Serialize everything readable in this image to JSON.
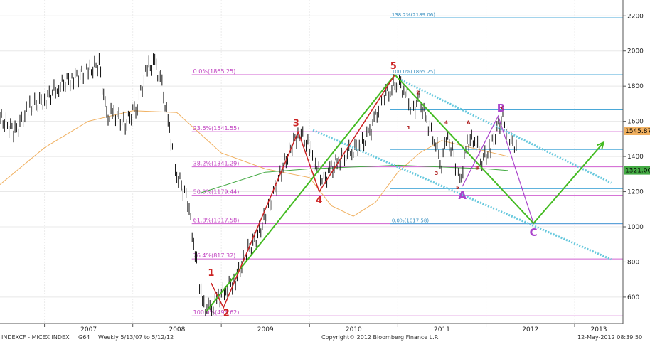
{
  "chart_data": {
    "type": "line",
    "x_range": [
      "2006-07-01",
      "2013-07-20"
    ],
    "ylim": [
      450,
      2290
    ],
    "y_ticks": [
      600,
      800,
      1000,
      1200,
      1400,
      1600,
      1800,
      2000,
      2200
    ],
    "year_labels": [
      {
        "label": "2007",
        "date": "2007-01-01"
      },
      {
        "label": "2008",
        "date": "2008-01-01"
      },
      {
        "label": "2009",
        "date": "2009-01-01"
      },
      {
        "label": "2010",
        "date": "2010-01-01"
      },
      {
        "label": "2011",
        "date": "2011-01-01"
      },
      {
        "label": "2012",
        "date": "2012-01-01"
      },
      {
        "label": "2013",
        "date": "2013-01-01"
      }
    ],
    "price_series": {
      "points": [
        [
          "2006-07-01",
          1620
        ],
        [
          "2006-09-01",
          1540
        ],
        [
          "2006-11-01",
          1680
        ],
        [
          "2007-01-01",
          1720
        ],
        [
          "2007-03-01",
          1800
        ],
        [
          "2007-05-01",
          1850
        ],
        [
          "2007-07-01",
          1880
        ],
        [
          "2007-08-15",
          1930
        ],
        [
          "2007-09-15",
          1620
        ],
        [
          "2007-10-15",
          1650
        ],
        [
          "2007-12-01",
          1580
        ],
        [
          "2008-01-20",
          1700
        ],
        [
          "2008-03-01",
          1900
        ],
        [
          "2008-04-01",
          1930
        ],
        [
          "2008-05-01",
          1800
        ],
        [
          "2008-06-01",
          1550
        ],
        [
          "2008-07-01",
          1300
        ],
        [
          "2008-08-15",
          1150
        ],
        [
          "2008-09-15",
          850
        ],
        [
          "2008-10-15",
          560
        ],
        [
          "2008-11-15",
          520
        ],
        [
          "2008-12-20",
          600
        ],
        [
          "2009-01-20",
          650
        ],
        [
          "2009-03-01",
          700
        ],
        [
          "2009-04-15",
          850
        ],
        [
          "2009-06-01",
          950
        ],
        [
          "2009-07-15",
          1100
        ],
        [
          "2009-09-01",
          1300
        ],
        [
          "2009-10-15",
          1450
        ],
        [
          "2009-11-20",
          1540
        ],
        [
          "2010-01-01",
          1450
        ],
        [
          "2010-02-01",
          1320
        ],
        [
          "2010-03-01",
          1260
        ],
        [
          "2010-04-01",
          1330
        ],
        [
          "2010-05-01",
          1380
        ],
        [
          "2010-06-01",
          1420
        ],
        [
          "2010-07-01",
          1440
        ],
        [
          "2010-08-01",
          1460
        ],
        [
          "2010-09-01",
          1520
        ],
        [
          "2010-10-01",
          1620
        ],
        [
          "2010-11-01",
          1750
        ],
        [
          "2010-12-01",
          1780
        ],
        [
          "2011-01-01",
          1830
        ],
        [
          "2011-02-01",
          1760
        ],
        [
          "2011-03-01",
          1660
        ],
        [
          "2011-04-01",
          1720
        ],
        [
          "2011-05-01",
          1600
        ],
        [
          "2011-06-01",
          1500
        ],
        [
          "2011-07-01",
          1360
        ],
        [
          "2011-07-20",
          1500
        ],
        [
          "2011-08-15",
          1440
        ],
        [
          "2011-09-15",
          1240
        ],
        [
          "2011-10-15",
          1480
        ],
        [
          "2011-11-15",
          1500
        ],
        [
          "2011-12-15",
          1380
        ],
        [
          "2012-01-20",
          1440
        ],
        [
          "2012-02-15",
          1560
        ],
        [
          "2012-03-10",
          1620
        ],
        [
          "2012-04-01",
          1520
        ],
        [
          "2012-04-20",
          1500
        ],
        [
          "2012-05-12",
          1400
        ]
      ],
      "color": "#111111"
    },
    "moving_average_orange": {
      "points": [
        [
          "2006-07-01",
          1240
        ],
        [
          "2007-01-01",
          1450
        ],
        [
          "2007-07-01",
          1600
        ],
        [
          "2008-01-01",
          1660
        ],
        [
          "2008-07-01",
          1650
        ],
        [
          "2009-01-01",
          1420
        ],
        [
          "2009-07-01",
          1330
        ],
        [
          "2010-01-01",
          1280
        ],
        [
          "2010-04-01",
          1120
        ],
        [
          "2010-07-01",
          1060
        ],
        [
          "2010-10-01",
          1140
        ],
        [
          "2011-01-01",
          1310
        ],
        [
          "2011-04-01",
          1420
        ],
        [
          "2011-07-01",
          1490
        ],
        [
          "2011-10-01",
          1460
        ],
        [
          "2012-01-01",
          1430
        ],
        [
          "2012-04-01",
          1400
        ]
      ],
      "color": "#f0b060"
    },
    "moving_average_green": {
      "points": [
        [
          "2008-10-01",
          1190
        ],
        [
          "2009-01-01",
          1230
        ],
        [
          "2009-07-01",
          1310
        ],
        [
          "2010-01-01",
          1330
        ],
        [
          "2010-07-01",
          1340
        ],
        [
          "2011-01-01",
          1350
        ],
        [
          "2011-07-01",
          1340
        ],
        [
          "2012-01-01",
          1330
        ],
        [
          "2012-04-01",
          1320
        ]
      ],
      "color": "#44aa44"
    },
    "fib_levels_magenta": [
      {
        "label": "0.0%(1865.25)",
        "value": 1865.25
      },
      {
        "label": "23.6%(1541.55)",
        "value": 1541.55
      },
      {
        "label": "38.2%(1341.29)",
        "value": 1341.29
      },
      {
        "label": "50.0%(1179.44)",
        "value": 1179.44
      },
      {
        "label": "61.8%(1017.58)",
        "value": 1017.58
      },
      {
        "label": "76.4%(817.32)",
        "value": 817.32
      },
      {
        "label": "100.0%(493.62)",
        "value": 493.62
      }
    ],
    "fib_levels_blue": [
      {
        "label": "138.2%(2189.06)",
        "value": 2189.06
      },
      {
        "label": "100.0%(1865.25)",
        "value": 1865.25
      },
      {
        "label": "",
        "value": 1665
      },
      {
        "label": "",
        "value": 1440
      },
      {
        "label": "",
        "value": 1217
      },
      {
        "label": "0.0%(1017.58)",
        "value": 1017.58
      }
    ],
    "elliott_wave_red": {
      "points": [
        {
          "label": "1",
          "date": "2008-11-20",
          "value": 680
        },
        {
          "label": "2",
          "date": "2009-01-10",
          "value": 540
        },
        {
          "label": "3",
          "date": "2009-11-15",
          "value": 1540
        },
        {
          "label": "4",
          "date": "2010-02-10",
          "value": 1200
        },
        {
          "label": "5",
          "date": "2010-12-20",
          "value": 1865
        }
      ],
      "color": "#cc2222"
    },
    "elliott_wave_green": {
      "points": [
        [
          "2008-11-01",
          520
        ],
        [
          "2010-12-20",
          1865
        ],
        [
          "2012-07-15",
          1020
        ],
        [
          "2013-05-01",
          1480
        ]
      ],
      "color": "#44bb22"
    },
    "abc_projection_purple": {
      "points": [
        {
          "label": "A",
          "date": "2011-09-25",
          "value": 1230
        },
        {
          "label": "B",
          "date": "2012-02-20",
          "value": 1630
        },
        {
          "label": "C",
          "date": "2012-07-15",
          "value": 1020
        }
      ],
      "color": "#aa44cc"
    },
    "sub_wave_labels": [
      {
        "label": "1",
        "date": "2011-02-15",
        "value": 1555
      },
      {
        "label": "2",
        "date": "2011-03-25",
        "value": 1755
      },
      {
        "label": "3",
        "date": "2011-06-10",
        "value": 1295
      },
      {
        "label": "4",
        "date": "2011-07-20",
        "value": 1585
      },
      {
        "label": "5",
        "date": "2011-09-05",
        "value": 1215
      },
      {
        "label": "A",
        "date": "2011-10-20",
        "value": 1585
      },
      {
        "label": "B",
        "date": "2011-11-25",
        "value": 1325
      },
      {
        "label": "C",
        "date": "2012-03-10",
        "value": 1665
      }
    ],
    "channel_upper": {
      "points": [
        [
          "2011-01-15",
          1835
        ],
        [
          "2013-06-01",
          1250
        ]
      ],
      "color": "#66c8dd"
    },
    "channel_lower": {
      "points": [
        [
          "2010-01-15",
          1550
        ],
        [
          "2013-06-01",
          815
        ]
      ],
      "color": "#66c8dd"
    },
    "price_tags": [
      {
        "label": "1545.87",
        "value": 1545.87,
        "color": "#f0b060"
      },
      {
        "label": "1321.00",
        "value": 1321.0,
        "color": "#44aa44"
      }
    ]
  },
  "footer": {
    "left": "INDEXCF - MICEX INDEX",
    "code": "G64",
    "range": "Weekly  5/13/07 to 5/12/12",
    "copyright": "Copyright© 2012 Bloomberg Finance L.P.",
    "timestamp": "12-May-2012 08:39:50"
  }
}
